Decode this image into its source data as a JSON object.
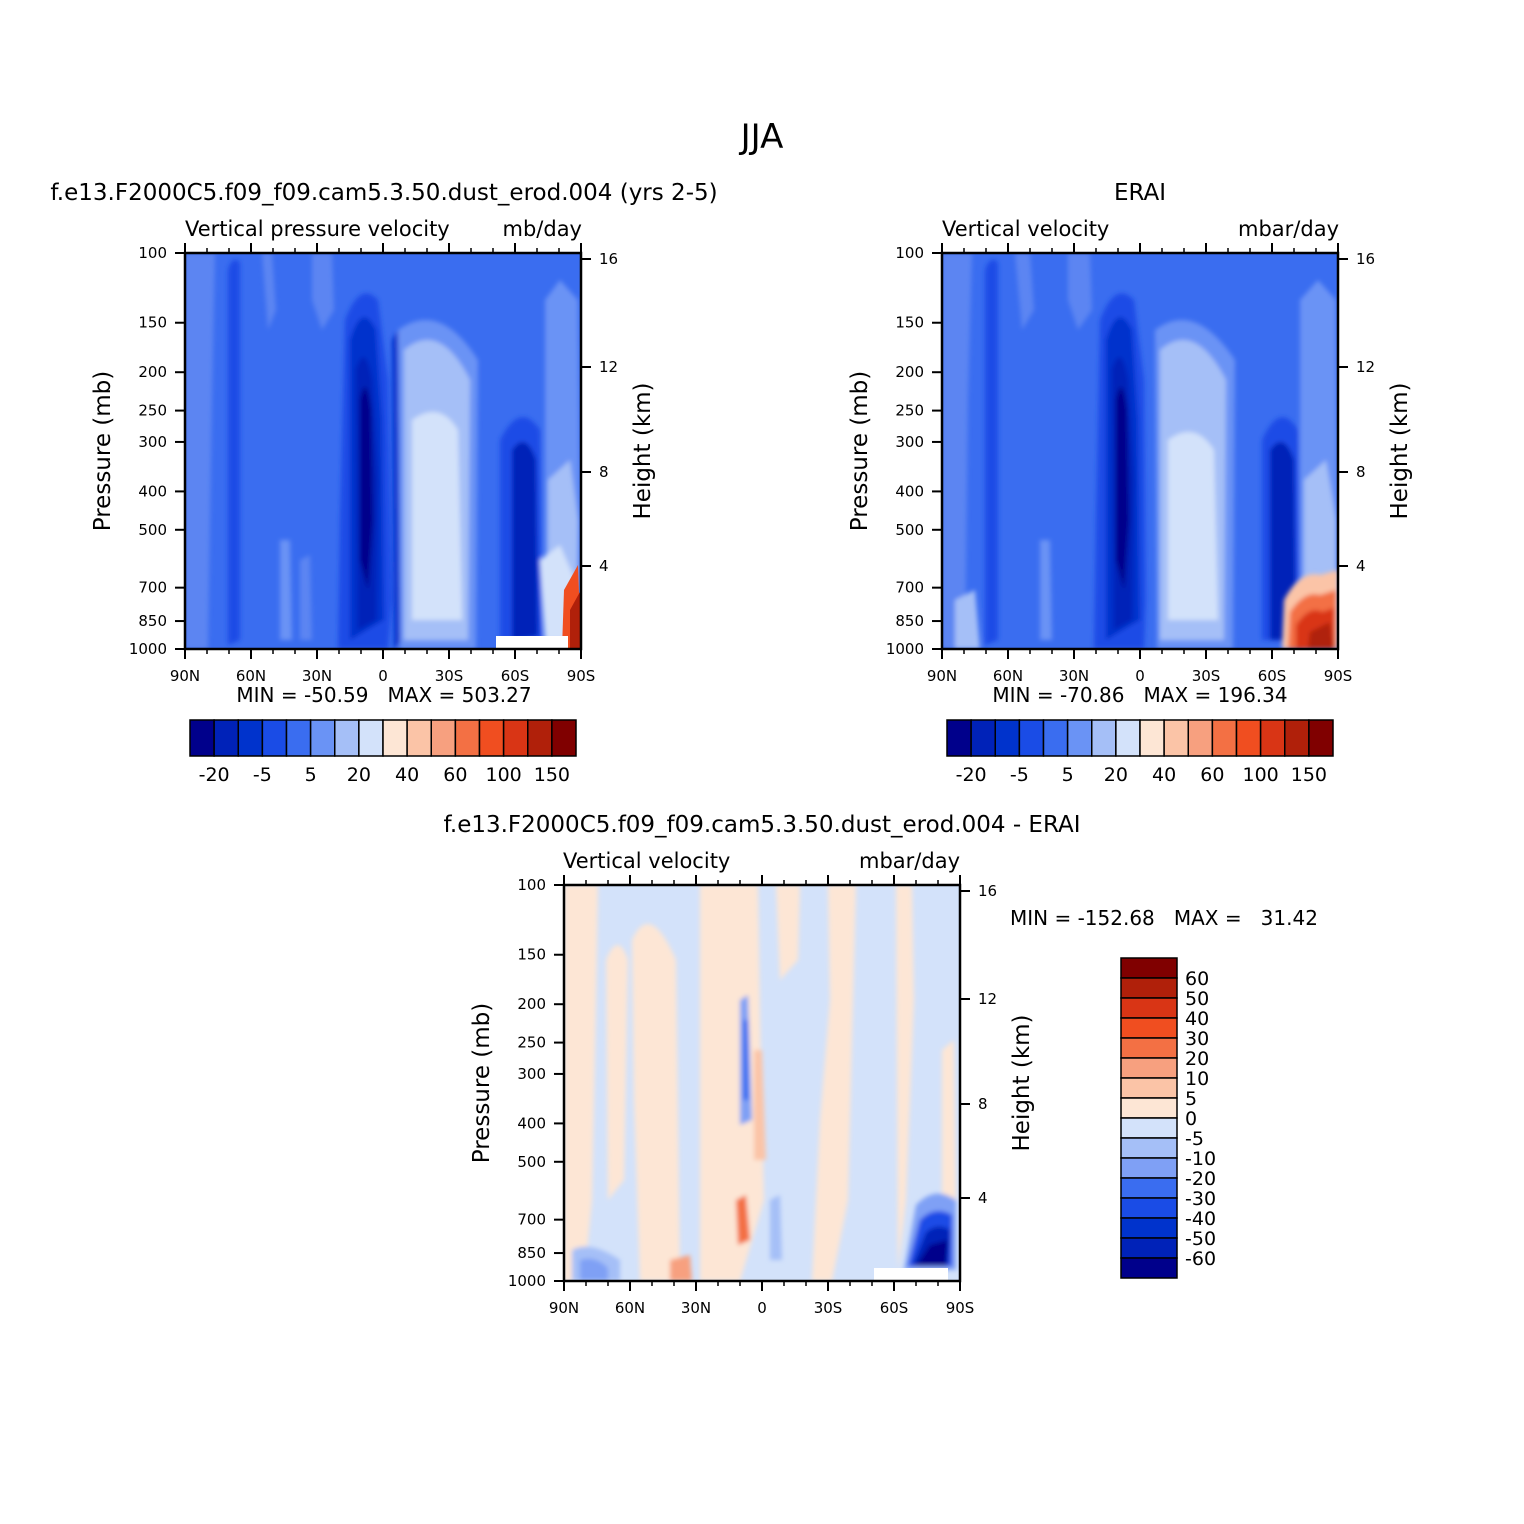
{
  "page_title": "JJA",
  "colors": {
    "blues": [
      "#00008f",
      "#0019b3",
      "#0033cc",
      "#1a4ce6",
      "#3366ff",
      "#5c85f2",
      "#8aa6f5",
      "#b3c7f7",
      "#d6e4fa"
    ],
    "reds": [
      "#fde6d5",
      "#fbccb4",
      "#f7a07f",
      "#f37044",
      "#ef4a1f",
      "#e03318",
      "#b82008",
      "#8b0000"
    ],
    "scale_top": [
      "#00008b",
      "#0022b8",
      "#0033cc",
      "#1a4ce6",
      "#3a6df0",
      "#6a93f5",
      "#a5bff7",
      "#d3e2fa",
      "#fde6d5",
      "#fbc4a7",
      "#f7a07f",
      "#f37044",
      "#f04e20",
      "#d93515",
      "#b0200a",
      "#800000"
    ],
    "scale_diff": [
      "#800000",
      "#b0200a",
      "#d93515",
      "#f04e20",
      "#f37044",
      "#f7a07f",
      "#fbc4a7",
      "#fde6d5",
      "#d3e2fa",
      "#a5bff7",
      "#7fa0f5",
      "#3a6df0",
      "#1a4ce6",
      "#0033cc",
      "#0022b8",
      "#00008b"
    ]
  },
  "chart_data": [
    {
      "type": "heatmap",
      "title": "f.e13.F2000C5.f09_f09.cam5.3.50.dust_erod.004 (yrs 2-5)",
      "left_label": "Vertical pressure velocity",
      "right_label": "mb/day",
      "ylabel": "Pressure (mb)",
      "ylabel_right": "Height (km)",
      "x_ticks": [
        "90N",
        "60N",
        "30N",
        "0",
        "30S",
        "60S",
        "90S"
      ],
      "y_ticks": [
        "100",
        "150",
        "200",
        "250",
        "300",
        "400",
        "500",
        "700",
        "850",
        "1000"
      ],
      "y_ticks_right": [
        "16",
        "12",
        "8",
        "4"
      ],
      "min_max": "MIN = -50.59   MAX = 503.27",
      "colorbar_labels": [
        "-20",
        "-5",
        "5",
        "20",
        "40",
        "60",
        "100",
        "150"
      ]
    },
    {
      "type": "heatmap",
      "title": "ERAI",
      "left_label": "Vertical velocity",
      "right_label": "mbar/day",
      "ylabel": "Pressure (mb)",
      "ylabel_right": "Height (km)",
      "x_ticks": [
        "90N",
        "60N",
        "30N",
        "0",
        "30S",
        "60S",
        "90S"
      ],
      "y_ticks": [
        "100",
        "150",
        "200",
        "250",
        "300",
        "400",
        "500",
        "700",
        "850",
        "1000"
      ],
      "y_ticks_right": [
        "16",
        "12",
        "8",
        "4"
      ],
      "min_max": "MIN = -70.86   MAX = 196.34",
      "colorbar_labels": [
        "-20",
        "-5",
        "5",
        "20",
        "40",
        "60",
        "100",
        "150"
      ]
    },
    {
      "type": "heatmap",
      "title": "f.e13.F2000C5.f09_f09.cam5.3.50.dust_erod.004 - ERAI",
      "left_label": "Vertical velocity",
      "right_label": "mbar/day",
      "ylabel": "Pressure (mb)",
      "ylabel_right": "Height (km)",
      "x_ticks": [
        "90N",
        "60N",
        "30N",
        "0",
        "30S",
        "60S",
        "90S"
      ],
      "y_ticks": [
        "100",
        "150",
        "200",
        "250",
        "300",
        "400",
        "500",
        "700",
        "850",
        "1000"
      ],
      "y_ticks_right": [
        "16",
        "12",
        "8",
        "4"
      ],
      "min_max": "MIN = -152.68   MAX =   31.42",
      "colorbar_labels": [
        "60",
        "50",
        "40",
        "30",
        "20",
        "10",
        "5",
        "0",
        "-5",
        "-10",
        "-20",
        "-30",
        "-40",
        "-50",
        "-60"
      ]
    }
  ]
}
